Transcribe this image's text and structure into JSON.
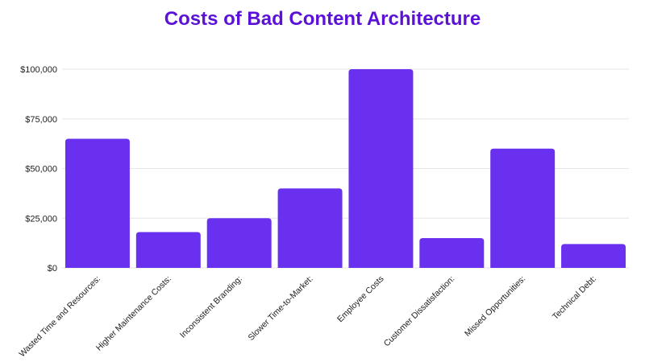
{
  "chart_data": {
    "type": "bar",
    "title": "Costs of Bad Content Architecture",
    "xlabel": "",
    "ylabel": "",
    "categories": [
      "Wasted Time and Resources:",
      "Higher Maintenance Costs:",
      "Inconsistent Branding:",
      "Slower Time-to-Market:",
      "Employee Costs",
      "Customer Dissatisfaction:",
      "Missed Opportunities:",
      "Technical Debt:"
    ],
    "values": [
      65000,
      18000,
      25000,
      40000,
      100000,
      15000,
      60000,
      12000
    ],
    "ylim": [
      0,
      100000
    ],
    "yticks": [
      0,
      25000,
      50000,
      75000,
      100000
    ],
    "ytick_labels": [
      "$0",
      "$25,000",
      "$50,000",
      "$75,000",
      "$100,000"
    ],
    "grid": true,
    "legend": "none",
    "colors": {
      "bar": "#6930ef",
      "title": "#5b12d6",
      "grid": "#e6e6e6"
    }
  }
}
